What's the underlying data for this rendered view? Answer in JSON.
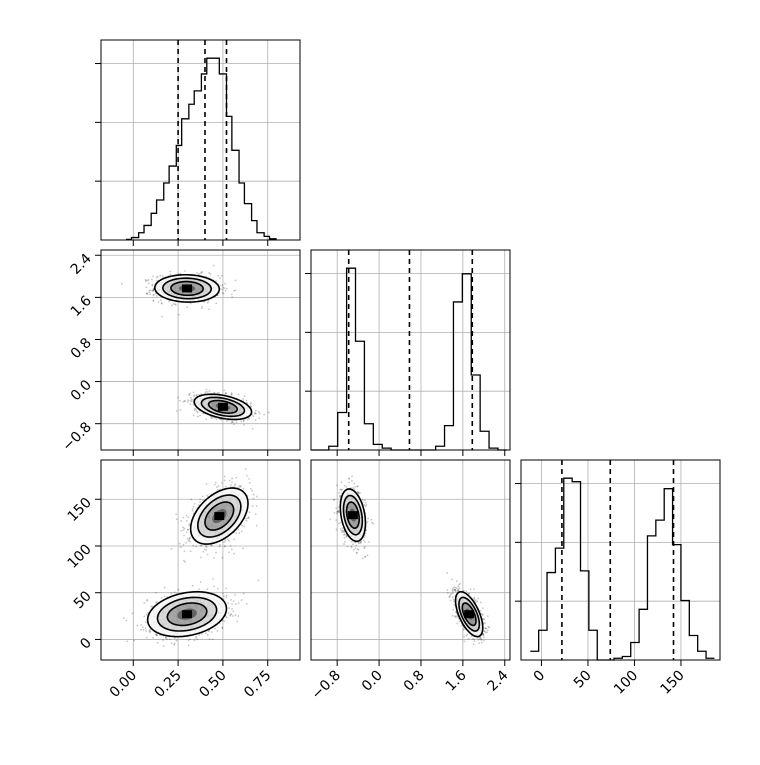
{
  "chart_data": {
    "type": "corner",
    "parameters": [
      {
        "range": [
          -0.18,
          0.93
        ],
        "ticks": [
          0.0,
          0.25,
          0.5,
          0.75
        ],
        "tick_labels": [
          "0.00",
          "0.25",
          "0.50",
          "0.75"
        ]
      },
      {
        "range": [
          -1.3,
          2.5
        ],
        "ticks": [
          -0.8,
          0.0,
          0.8,
          1.6,
          2.4
        ],
        "tick_labels": [
          "−0.8",
          "0.0",
          "0.8",
          "1.6",
          "2.4"
        ]
      },
      {
        "range": [
          -22,
          192
        ],
        "ticks": [
          0,
          50,
          100,
          150
        ],
        "tick_labels": [
          "0",
          "50",
          "100",
          "150"
        ]
      }
    ],
    "marginals": [
      {
        "bin_edges": [
          -0.04,
          -0.01,
          0.03,
          0.06,
          0.1,
          0.13,
          0.17,
          0.2,
          0.24,
          0.27,
          0.31,
          0.34,
          0.38,
          0.41,
          0.45,
          0.48,
          0.52,
          0.55,
          0.59,
          0.62,
          0.66,
          0.69,
          0.73,
          0.76,
          0.8
        ],
        "counts": [
          0.5,
          2,
          6,
          12,
          22,
          33,
          47,
          61,
          78,
          100,
          112,
          123,
          137,
          150,
          150,
          137,
          102,
          74,
          47,
          30,
          16,
          6,
          3,
          1
        ],
        "quantiles": [
          0.25,
          0.4,
          0.52
        ]
      },
      {
        "bin_edges": [
          -1.3,
          -1.13,
          -0.96,
          -0.79,
          -0.62,
          -0.45,
          -0.28,
          -0.11,
          0.06,
          0.23,
          0.4,
          0.57,
          0.74,
          0.91,
          1.08,
          1.25,
          1.42,
          1.59,
          1.76,
          1.93,
          2.1,
          2.27,
          2.44
        ],
        "counts": [
          0,
          0,
          2,
          20,
          97,
          58,
          14,
          3,
          1,
          0,
          0,
          0,
          0,
          0,
          2,
          13,
          79,
          94,
          40,
          10,
          1,
          0
        ],
        "quantiles": [
          -0.58,
          0.58,
          1.78
        ]
      },
      {
        "bin_edges": [
          -12,
          -3,
          6,
          15,
          24,
          33,
          42,
          51,
          60,
          69,
          78,
          87,
          96,
          105,
          114,
          123,
          132,
          141,
          150,
          159,
          168,
          177,
          186
        ],
        "counts": [
          5,
          17,
          50,
          64,
          104,
          102,
          51,
          17,
          0,
          0,
          1,
          2,
          10,
          29,
          71,
          80,
          98,
          66,
          34,
          14,
          5,
          1
        ],
        "quantiles": [
          22,
          74,
          142
        ]
      }
    ],
    "joint": [
      {
        "x_param": 0,
        "y_param": 1,
        "clusters": [
          {
            "mean": [
              0.3,
              1.77
            ],
            "sd": [
              0.09,
              0.13
            ],
            "rho": -0.05,
            "n": 900
          },
          {
            "mean": [
              0.5,
              -0.48
            ],
            "sd": [
              0.08,
              0.12
            ],
            "rho": -0.4,
            "n": 900
          }
        ]
      },
      {
        "x_param": 0,
        "y_param": 2,
        "clusters": [
          {
            "mean": [
              0.3,
              27
            ],
            "sd": [
              0.11,
              12
            ],
            "rho": 0.25,
            "n": 900
          },
          {
            "mean": [
              0.48,
              132
            ],
            "sd": [
              0.08,
              15
            ],
            "rho": 0.45,
            "n": 900
          }
        ]
      },
      {
        "x_param": 1,
        "y_param": 2,
        "clusters": [
          {
            "mean": [
              -0.5,
              133
            ],
            "sd": [
              0.12,
              14
            ],
            "rho": -0.3,
            "n": 900
          },
          {
            "mean": [
              1.72,
              27
            ],
            "sd": [
              0.13,
              12
            ],
            "rho": -0.6,
            "n": 900
          }
        ]
      }
    ],
    "contour_levels_sigma": [
      0.5,
      1.0,
      1.5,
      2.0
    ],
    "quantile_line_style": "dashed",
    "grid": true,
    "colors": {
      "points": "#000000",
      "fill": "#000000",
      "line": "#000000"
    }
  }
}
